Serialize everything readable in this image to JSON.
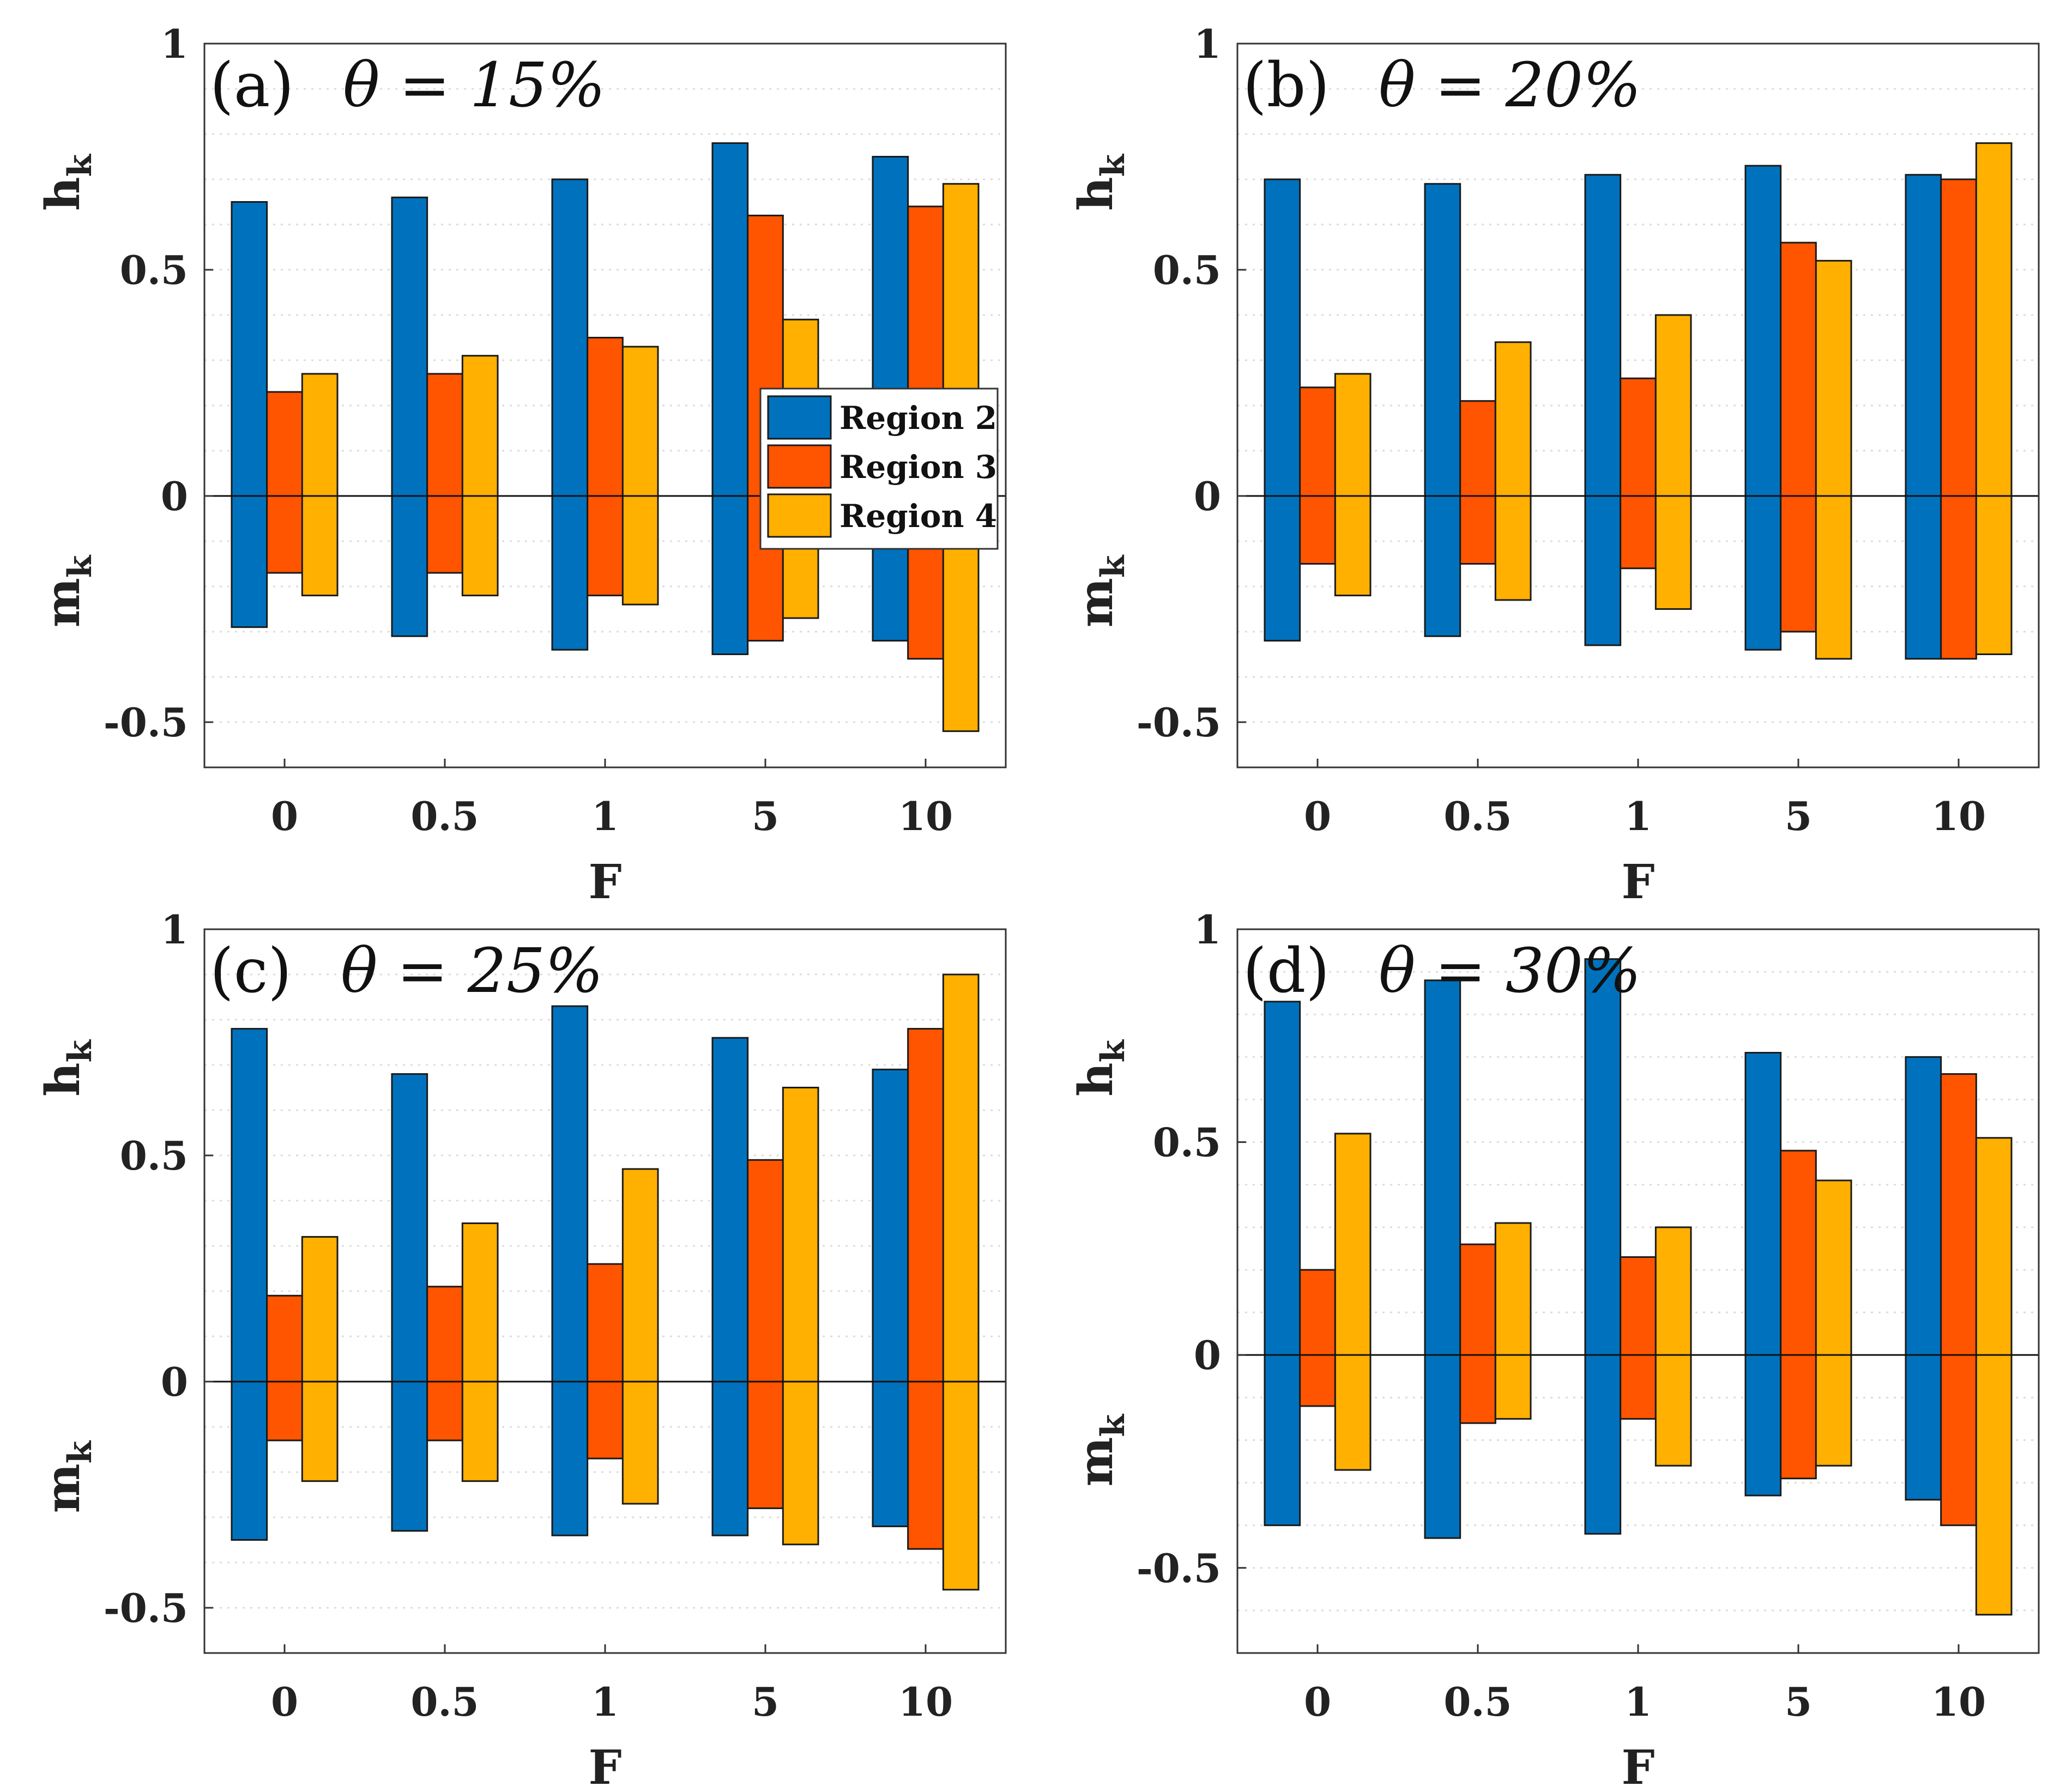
{
  "colors": {
    "Region 2": "#0072BD",
    "Region 3": "#FF5400",
    "Region 4": "#FFB000"
  },
  "legend": {
    "entries": [
      "Region 2",
      "Region 3",
      "Region 4"
    ],
    "placement": "center of panel (a)"
  },
  "chart_data": [
    {
      "type": "bar",
      "panel": "(a)",
      "title": "θ = 15%",
      "xlabel": "F",
      "ylabel_top": "h",
      "ylabel_top_sub": "k",
      "ylabel_bottom": "m",
      "ylabel_bottom_sub": "k",
      "categories": [
        "0",
        "0.5",
        "1",
        "5",
        "10"
      ],
      "yticks": [
        "-0.5",
        "0",
        "0.5",
        "1"
      ],
      "ylim": [
        -0.6,
        1
      ],
      "grid": "horizontal minor dotted",
      "series": [
        {
          "name": "Region 2",
          "positive": [
            0.65,
            0.66,
            0.7,
            0.78,
            0.75
          ],
          "negative": [
            -0.29,
            -0.31,
            -0.34,
            -0.35,
            -0.32
          ]
        },
        {
          "name": "Region 3",
          "positive": [
            0.23,
            0.27,
            0.35,
            0.62,
            0.64
          ],
          "negative": [
            -0.17,
            -0.17,
            -0.22,
            -0.32,
            -0.36
          ]
        },
        {
          "name": "Region 4",
          "positive": [
            0.27,
            0.31,
            0.33,
            0.39,
            0.69
          ],
          "negative": [
            -0.22,
            -0.22,
            -0.24,
            -0.27,
            -0.52
          ]
        }
      ]
    },
    {
      "type": "bar",
      "panel": "(b)",
      "title": "θ = 20%",
      "xlabel": "F",
      "ylabel_top": "h",
      "ylabel_top_sub": "k",
      "ylabel_bottom": "m",
      "ylabel_bottom_sub": "k",
      "categories": [
        "0",
        "0.5",
        "1",
        "5",
        "10"
      ],
      "yticks": [
        "-0.5",
        "0",
        "0.5",
        "1"
      ],
      "ylim": [
        -0.6,
        1
      ],
      "grid": "horizontal minor dotted",
      "series": [
        {
          "name": "Region 2",
          "positive": [
            0.7,
            0.69,
            0.71,
            0.73,
            0.71
          ],
          "negative": [
            -0.32,
            -0.31,
            -0.33,
            -0.34,
            -0.36
          ]
        },
        {
          "name": "Region 3",
          "positive": [
            0.24,
            0.21,
            0.26,
            0.56,
            0.7
          ],
          "negative": [
            -0.15,
            -0.15,
            -0.16,
            -0.3,
            -0.36
          ]
        },
        {
          "name": "Region 4",
          "positive": [
            0.27,
            0.34,
            0.4,
            0.52,
            0.78
          ],
          "negative": [
            -0.22,
            -0.23,
            -0.25,
            -0.36,
            -0.35
          ]
        }
      ]
    },
    {
      "type": "bar",
      "panel": "(c)",
      "title": "θ = 25%",
      "xlabel": "F",
      "ylabel_top": "h",
      "ylabel_top_sub": "k",
      "ylabel_bottom": "m",
      "ylabel_bottom_sub": "k",
      "categories": [
        "0",
        "0.5",
        "1",
        "5",
        "10"
      ],
      "yticks": [
        "-0.5",
        "0",
        "0.5",
        "1"
      ],
      "ylim": [
        -0.6,
        1
      ],
      "grid": "horizontal minor dotted",
      "series": [
        {
          "name": "Region 2",
          "positive": [
            0.78,
            0.68,
            0.83,
            0.76,
            0.69
          ],
          "negative": [
            -0.35,
            -0.33,
            -0.34,
            -0.34,
            -0.32
          ]
        },
        {
          "name": "Region 3",
          "positive": [
            0.19,
            0.21,
            0.26,
            0.49,
            0.78
          ],
          "negative": [
            -0.13,
            -0.13,
            -0.17,
            -0.28,
            -0.37
          ]
        },
        {
          "name": "Region 4",
          "positive": [
            0.32,
            0.35,
            0.47,
            0.65,
            0.9
          ],
          "negative": [
            -0.22,
            -0.22,
            -0.27,
            -0.36,
            -0.46
          ]
        }
      ]
    },
    {
      "type": "bar",
      "panel": "(d)",
      "title": "θ = 30%",
      "xlabel": "F",
      "ylabel_top": "h",
      "ylabel_top_sub": "k",
      "ylabel_bottom": "m",
      "ylabel_bottom_sub": "k",
      "categories": [
        "0",
        "0.5",
        "1",
        "5",
        "10"
      ],
      "yticks": [
        "-0.5",
        "0",
        "0.5",
        "1"
      ],
      "ylim": [
        -0.7,
        1
      ],
      "grid": "horizontal minor dotted",
      "series": [
        {
          "name": "Region 2",
          "positive": [
            0.83,
            0.88,
            0.93,
            0.71,
            0.7
          ],
          "negative": [
            -0.4,
            -0.43,
            -0.42,
            -0.33,
            -0.34
          ]
        },
        {
          "name": "Region 3",
          "positive": [
            0.2,
            0.26,
            0.23,
            0.48,
            0.66
          ],
          "negative": [
            -0.12,
            -0.16,
            -0.15,
            -0.29,
            -0.4
          ]
        },
        {
          "name": "Region 4",
          "positive": [
            0.52,
            0.31,
            0.3,
            0.41,
            0.51
          ],
          "negative": [
            -0.27,
            -0.15,
            -0.26,
            -0.26,
            -0.61
          ]
        }
      ]
    }
  ]
}
